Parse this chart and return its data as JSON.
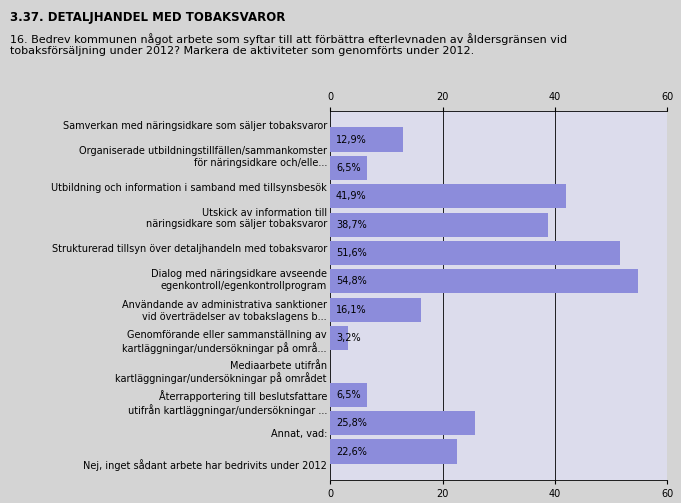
{
  "title": "3.37. DETALJHANDEL MED TOBAKSVAROR",
  "subtitle": "16. Bedrev kommunen något arbete som syftar till att förbättra efterlevnaden av åldersgränsen vid\ntobaksförsäljning under 2012? Markera de aktiviteter som genomförts under 2012.",
  "categories": [
    "Samverkan med näringsidkare som säljer tobaksvaror",
    "Organiserade utbildningstillfällen/sammankomster\nför näringsidkare och/elle...",
    "Utbildning och information i samband med tillsynsbesök",
    "Utskick av information till\nnäringsidkare som säljer tobaksvaror",
    "Strukturerad tillsyn över detaljhandeln med tobaksvaror",
    "Dialog med näringsidkare avseende\negenkontroll/egenkontrollprogram",
    "Användande av administrativa sanktioner\nvid överträdelser av tobakslagens b...",
    "Genomförande eller sammanställning av\nkartläggningar/undersökningar på områ...",
    "Mediaarbete utifrån\nkartläggningar/undersökningar på området",
    "Återrapportering till beslutsfattare\nutifrån kartläggningar/undersökningar ...",
    "Annat, vad:",
    "Nej, inget sådant arbete har bedrivits under 2012"
  ],
  "values": [
    12.9,
    6.5,
    41.9,
    38.7,
    51.6,
    54.8,
    16.1,
    3.2,
    0.0,
    6.5,
    25.8,
    22.6
  ],
  "value_labels": [
    "12,9%",
    "6,5%",
    "41,9%",
    "38,7%",
    "51,6%",
    "54,8%",
    "16,1%",
    "3,2%",
    "",
    "6,5%",
    "25,8%",
    "22,6%"
  ],
  "bar_color": "#8c8cdb",
  "background_color": "#d4d4d4",
  "plot_background_color": "#dcdcec",
  "xlim": [
    0,
    60
  ],
  "xticks": [
    0,
    20,
    40,
    60
  ],
  "title_fontsize": 8.5,
  "subtitle_fontsize": 8,
  "label_fontsize": 7,
  "value_fontsize": 7
}
